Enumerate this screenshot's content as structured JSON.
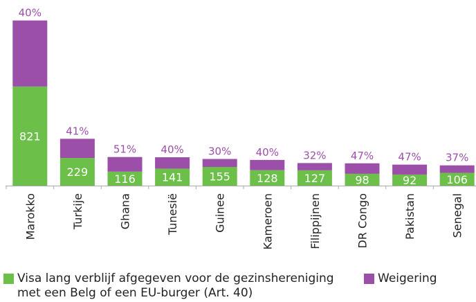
{
  "chart_data": {
    "type": "stacked_bar",
    "categories": [
      "Marokko",
      "Turkije",
      "Ghana",
      "Tunesië",
      "Guinee",
      "Kameroen",
      "Filippijnen",
      "DR Congo",
      "Pakistan",
      "Senegal"
    ],
    "series": [
      {
        "name": "Visa lang verblijf afgegeven voor de gezinshereniging met een Belg of een EU-burger  (Art. 40)",
        "color": "#6cc04a",
        "values": [
          821,
          229,
          116,
          141,
          155,
          128,
          127,
          98,
          92,
          106
        ]
      },
      {
        "name": "Weigering",
        "color": "#9c4fa8",
        "values": [
          547,
          159,
          121,
          94,
          66,
          85,
          60,
          87,
          82,
          62
        ]
      }
    ],
    "annotations": [
      "40%",
      "41%",
      "51%",
      "40%",
      "30%",
      "40%",
      "32%",
      "47%",
      "47%",
      "37%"
    ],
    "ylim": [
      0,
      1400
    ]
  }
}
